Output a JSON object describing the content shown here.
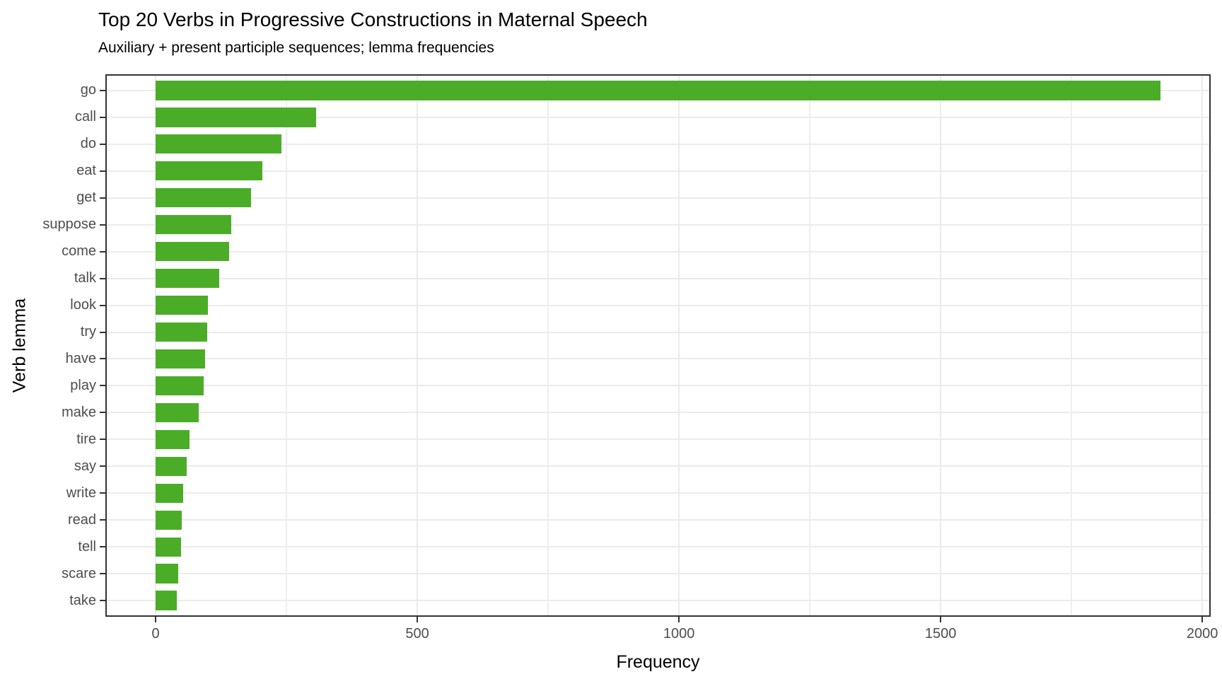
{
  "header": {
    "title": "Top 20 Verbs in Progressive Constructions in Maternal Speech",
    "subtitle": "Auxiliary + present participle sequences; lemma frequencies"
  },
  "chart_data": {
    "type": "bar",
    "orientation": "horizontal",
    "title": "Top 20 Verbs in Progressive Constructions in Maternal Speech",
    "subtitle": "Auxiliary + present participle sequences; lemma frequencies",
    "xlabel": "Frequency",
    "ylabel": "Verb lemma",
    "categories": [
      "go",
      "call",
      "do",
      "eat",
      "get",
      "suppose",
      "come",
      "talk",
      "look",
      "try",
      "have",
      "play",
      "make",
      "tire",
      "say",
      "write",
      "read",
      "tell",
      "scare",
      "take"
    ],
    "values": [
      1920,
      307,
      241,
      204,
      182,
      144,
      141,
      122,
      100,
      98,
      95,
      92,
      82,
      65,
      60,
      53,
      50,
      48,
      43,
      41
    ],
    "x_ticks": [
      0,
      500,
      1000,
      1500,
      2000
    ],
    "x_tick_labels": [
      "0",
      "500",
      "1000",
      "1500",
      "2000"
    ],
    "x_minor_ticks": [
      250,
      750,
      1250,
      1750
    ],
    "xlim_padding_fraction": 0.05,
    "grid": "on",
    "legend": "none",
    "colors": {
      "bar": "#4bad27",
      "grid_major": "#ebebeb",
      "grid_minor": "#efefef",
      "panel_border": "#333333",
      "tick_mark": "#333333",
      "tick_text": "#4d4d4d",
      "axis_title_text": "#000000",
      "title_text": "#000000",
      "background": "#ffffff"
    }
  }
}
